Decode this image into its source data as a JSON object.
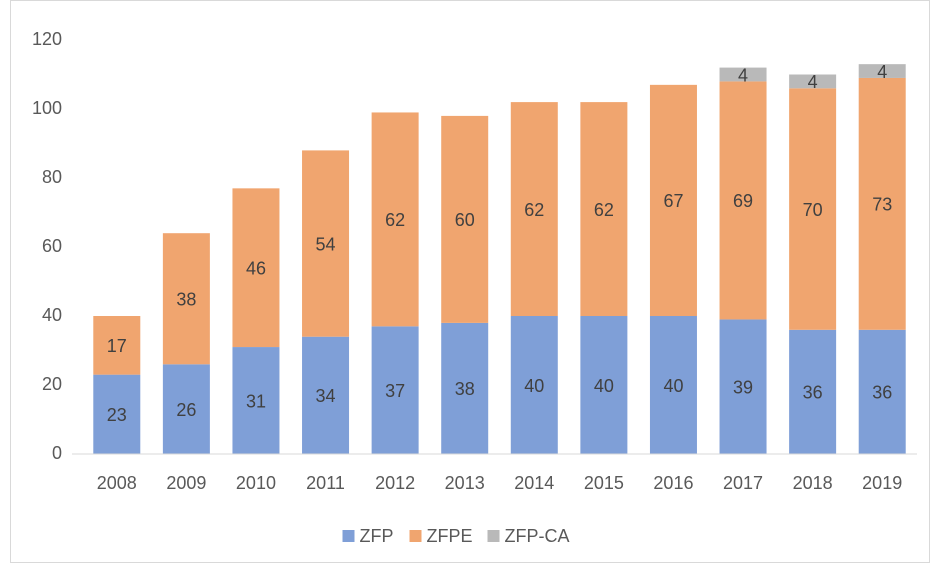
{
  "chart_data": {
    "type": "bar",
    "stacked": true,
    "categories": [
      "2008",
      "2009",
      "2010",
      "2011",
      "2012",
      "2013",
      "2014",
      "2015",
      "2016",
      "2017",
      "2018",
      "2019"
    ],
    "series": [
      {
        "name": "ZFP",
        "color": "#7f9fd7",
        "values": [
          23,
          26,
          31,
          34,
          37,
          38,
          40,
          40,
          40,
          39,
          36,
          36
        ]
      },
      {
        "name": "ZFPE",
        "color": "#f0a56f",
        "values": [
          17,
          38,
          46,
          54,
          62,
          60,
          62,
          62,
          67,
          69,
          70,
          73
        ]
      },
      {
        "name": "ZFP-CA",
        "color": "#b9b9b9",
        "values": [
          null,
          null,
          null,
          null,
          null,
          null,
          null,
          null,
          null,
          4,
          4,
          4
        ]
      }
    ],
    "ylim": [
      0,
      120
    ],
    "yticks": [
      0,
      20,
      40,
      60,
      80,
      100,
      120
    ],
    "grid": false,
    "legend": "bottom"
  }
}
